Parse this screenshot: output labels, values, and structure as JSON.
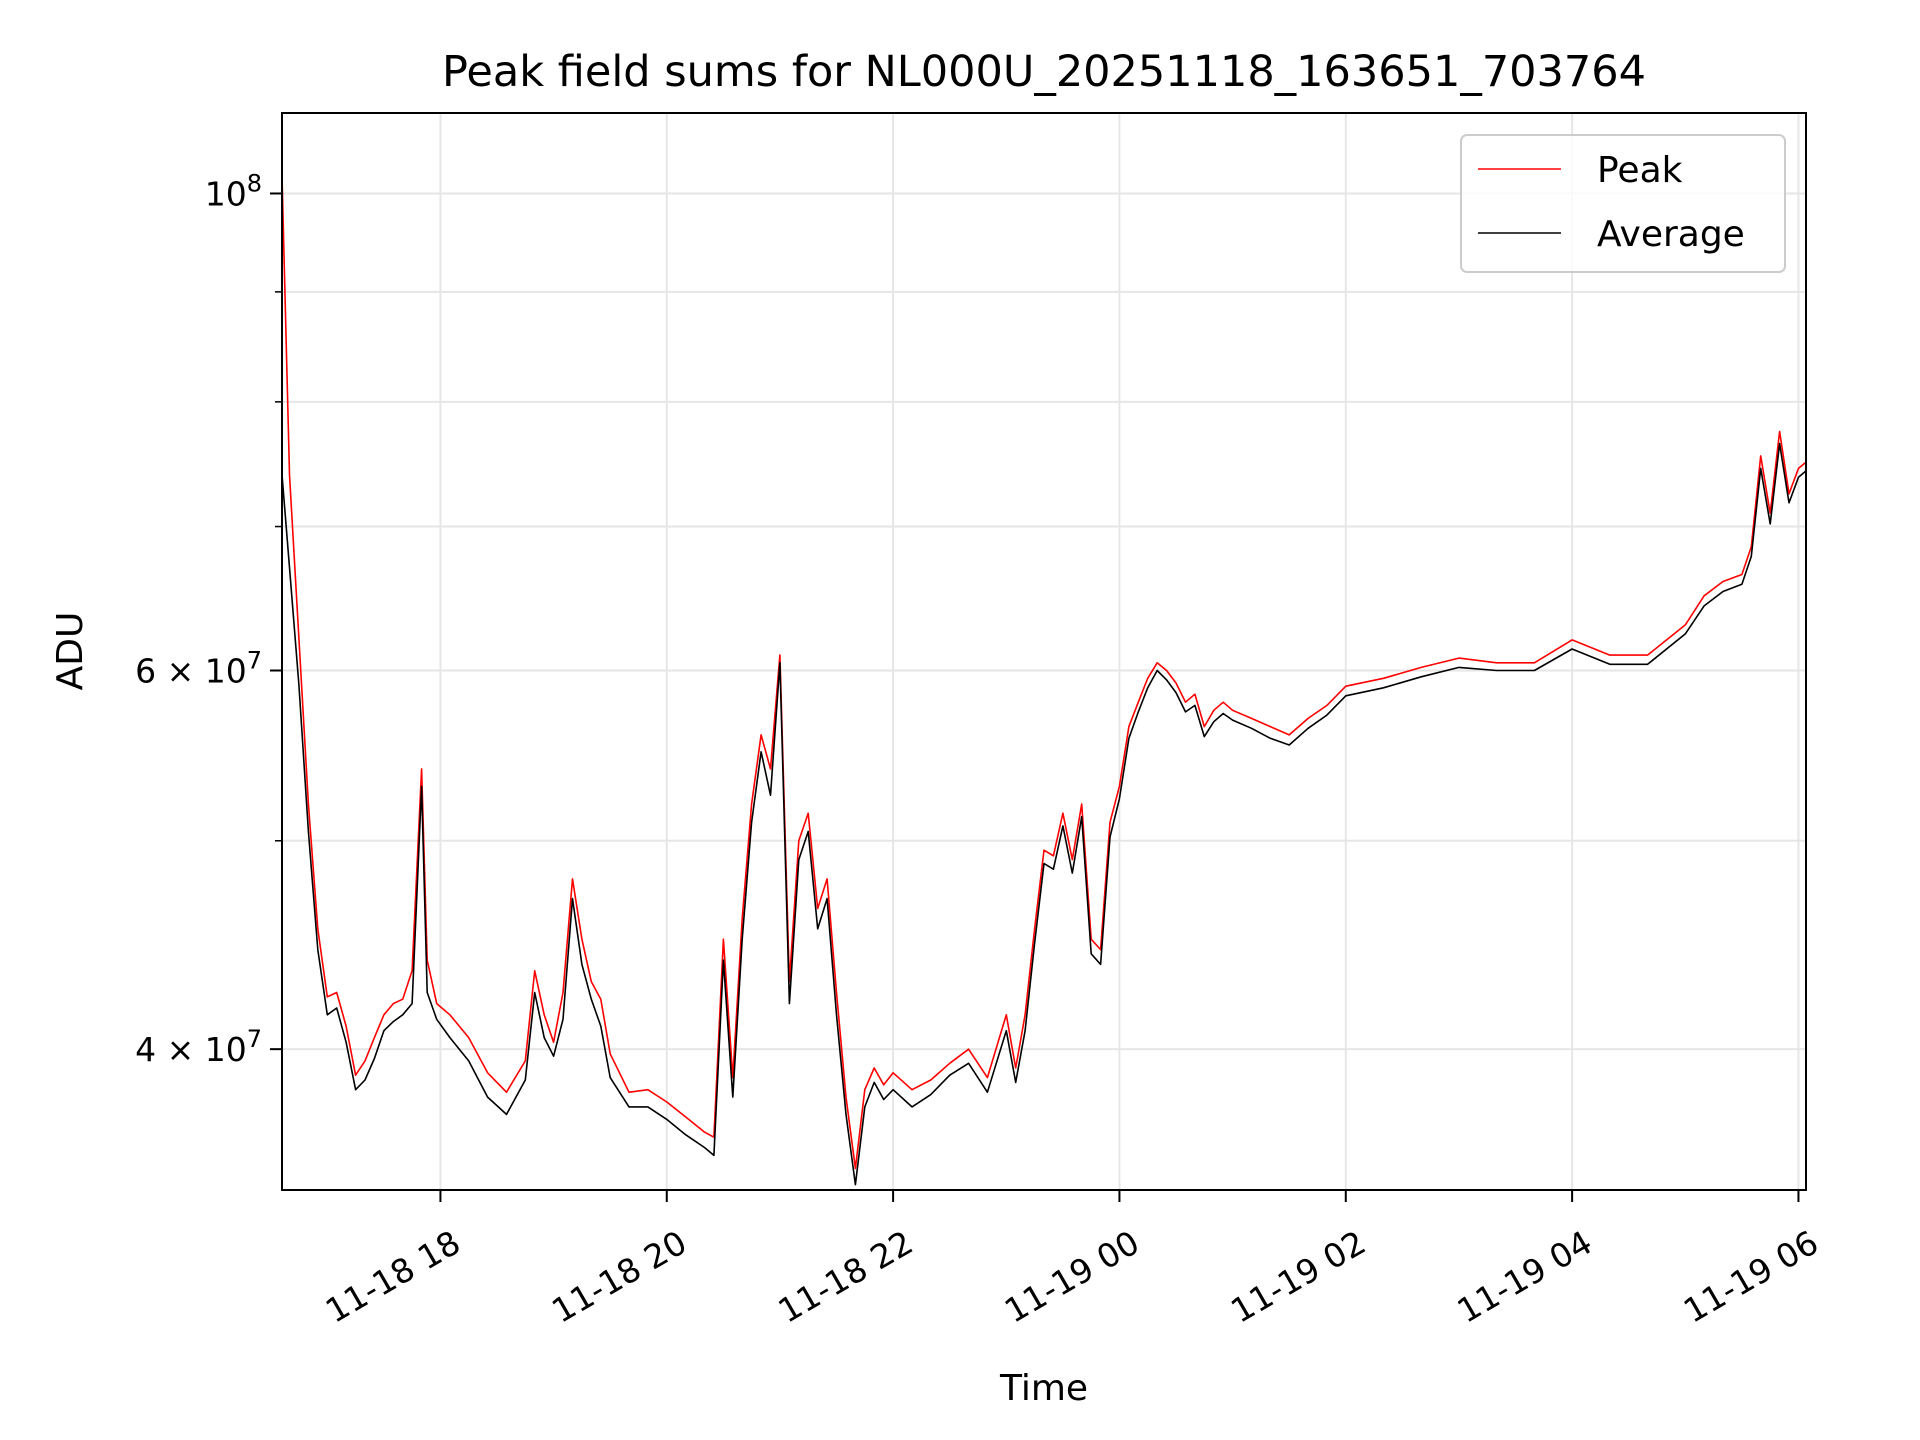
{
  "chart_data": {
    "type": "line",
    "title": "Peak field sums for NL000U_20251118_163651_703764",
    "xlabel": "Time",
    "ylabel": "ADU",
    "y_scale": "log",
    "ylim": [
      34400000,
      109000000
    ],
    "xlim": [
      "2025-11-18 16:36",
      "2025-11-19 06:04"
    ],
    "grid": true,
    "legend_position": "upper right",
    "x_ticks": [
      {
        "value": "2025-11-18 18:00",
        "label": "11-18 18"
      },
      {
        "value": "2025-11-18 20:00",
        "label": "11-18 20"
      },
      {
        "value": "2025-11-18 22:00",
        "label": "11-18 22"
      },
      {
        "value": "2025-11-19 00:00",
        "label": "11-19 00"
      },
      {
        "value": "2025-11-19 02:00",
        "label": "11-19 02"
      },
      {
        "value": "2025-11-19 04:00",
        "label": "11-19 04"
      },
      {
        "value": "2025-11-19 06:00",
        "label": "11-19 06"
      }
    ],
    "y_ticks_major": [
      {
        "value": 40000000,
        "mantissa": "4",
        "exponent": "7"
      },
      {
        "value": 60000000,
        "mantissa": "6",
        "exponent": "7"
      },
      {
        "value": 100000000,
        "mantissa": "",
        "exponent": "8"
      }
    ],
    "y_ticks_minor": [
      50000000,
      70000000,
      80000000,
      90000000
    ],
    "series": [
      {
        "name": "Peak",
        "color": "#ff0000",
        "x": [
          "2025-11-18 16:36",
          "2025-11-18 16:40",
          "2025-11-18 16:45",
          "2025-11-18 16:50",
          "2025-11-18 16:55",
          "2025-11-18 17:00",
          "2025-11-18 17:05",
          "2025-11-18 17:10",
          "2025-11-18 17:15",
          "2025-11-18 17:20",
          "2025-11-18 17:25",
          "2025-11-18 17:30",
          "2025-11-18 17:35",
          "2025-11-18 17:40",
          "2025-11-18 17:45",
          "2025-11-18 17:50",
          "2025-11-18 17:53",
          "2025-11-18 17:58",
          "2025-11-18 18:05",
          "2025-11-18 18:15",
          "2025-11-18 18:25",
          "2025-11-18 18:35",
          "2025-11-18 18:45",
          "2025-11-18 18:50",
          "2025-11-18 18:55",
          "2025-11-18 19:00",
          "2025-11-18 19:05",
          "2025-11-18 19:10",
          "2025-11-18 19:15",
          "2025-11-18 19:20",
          "2025-11-18 19:25",
          "2025-11-18 19:30",
          "2025-11-18 19:40",
          "2025-11-18 19:50",
          "2025-11-18 20:00",
          "2025-11-18 20:10",
          "2025-11-18 20:20",
          "2025-11-18 20:25",
          "2025-11-18 20:30",
          "2025-11-18 20:35",
          "2025-11-18 20:40",
          "2025-11-18 20:45",
          "2025-11-18 20:50",
          "2025-11-18 20:55",
          "2025-11-18 21:00",
          "2025-11-18 21:05",
          "2025-11-18 21:10",
          "2025-11-18 21:15",
          "2025-11-18 21:20",
          "2025-11-18 21:25",
          "2025-11-18 21:30",
          "2025-11-18 21:35",
          "2025-11-18 21:40",
          "2025-11-18 21:45",
          "2025-11-18 21:50",
          "2025-11-18 21:55",
          "2025-11-18 22:00",
          "2025-11-18 22:10",
          "2025-11-18 22:20",
          "2025-11-18 22:30",
          "2025-11-18 22:40",
          "2025-11-18 22:50",
          "2025-11-18 23:00",
          "2025-11-18 23:05",
          "2025-11-18 23:10",
          "2025-11-18 23:15",
          "2025-11-18 23:20",
          "2025-11-18 23:25",
          "2025-11-18 23:30",
          "2025-11-18 23:35",
          "2025-11-18 23:40",
          "2025-11-18 23:45",
          "2025-11-18 23:50",
          "2025-11-18 23:55",
          "2025-11-19 00:00",
          "2025-11-19 00:05",
          "2025-11-19 00:10",
          "2025-11-19 00:15",
          "2025-11-19 00:20",
          "2025-11-19 00:25",
          "2025-11-19 00:30",
          "2025-11-19 00:35",
          "2025-11-19 00:40",
          "2025-11-19 00:45",
          "2025-11-19 00:50",
          "2025-11-19 00:55",
          "2025-11-19 01:00",
          "2025-11-19 01:10",
          "2025-11-19 01:20",
          "2025-11-19 01:30",
          "2025-11-19 01:40",
          "2025-11-19 01:50",
          "2025-11-19 02:00",
          "2025-11-19 02:20",
          "2025-11-19 02:40",
          "2025-11-19 03:00",
          "2025-11-19 03:20",
          "2025-11-19 03:40",
          "2025-11-19 04:00",
          "2025-11-19 04:20",
          "2025-11-19 04:40",
          "2025-11-19 05:00",
          "2025-11-19 05:10",
          "2025-11-19 05:20",
          "2025-11-19 05:30",
          "2025-11-19 05:35",
          "2025-11-19 05:40",
          "2025-11-19 05:45",
          "2025-11-19 05:50",
          "2025-11-19 05:55",
          "2025-11-19 06:00",
          "2025-11-19 06:04"
        ],
        "values": [
          102000000,
          74000000,
          62000000,
          52000000,
          45500000,
          42300000,
          42500000,
          41000000,
          38900000,
          39500000,
          40500000,
          41500000,
          42000000,
          42200000,
          43500000,
          54000000,
          44000000,
          42000000,
          41500000,
          40500000,
          39000000,
          38200000,
          39500000,
          43500000,
          41500000,
          40300000,
          42500000,
          48000000,
          45000000,
          43000000,
          42200000,
          39800000,
          38200000,
          38300000,
          37800000,
          37200000,
          36600000,
          36400000,
          45000000,
          38800000,
          46000000,
          52000000,
          56000000,
          54000000,
          61000000,
          43000000,
          50000000,
          51500000,
          46500000,
          48000000,
          42500000,
          38000000,
          35200000,
          38300000,
          39200000,
          38500000,
          39000000,
          38300000,
          38700000,
          39400000,
          40000000,
          38800000,
          41500000,
          39200000,
          41500000,
          45500000,
          49500000,
          49200000,
          51500000,
          49000000,
          52000000,
          45000000,
          44500000,
          51000000,
          53000000,
          56500000,
          58000000,
          59500000,
          60500000,
          60000000,
          59200000,
          58000000,
          58500000,
          56500000,
          57500000,
          58000000,
          57500000,
          57000000,
          56500000,
          56000000,
          57000000,
          57800000,
          59000000,
          59500000,
          60200000,
          60800000,
          60500000,
          60500000,
          62000000,
          61000000,
          61000000,
          63000000,
          65000000,
          66000000,
          66500000,
          68500000,
          75500000,
          71000000,
          77500000,
          72500000,
          74500000,
          75000000
        ]
      },
      {
        "name": "Average",
        "color": "#000000",
        "x": [
          "2025-11-18 16:36",
          "2025-11-18 16:40",
          "2025-11-18 16:45",
          "2025-11-18 16:50",
          "2025-11-18 16:55",
          "2025-11-18 17:00",
          "2025-11-18 17:05",
          "2025-11-18 17:10",
          "2025-11-18 17:15",
          "2025-11-18 17:20",
          "2025-11-18 17:25",
          "2025-11-18 17:30",
          "2025-11-18 17:35",
          "2025-11-18 17:40",
          "2025-11-18 17:45",
          "2025-11-18 17:50",
          "2025-11-18 17:53",
          "2025-11-18 17:58",
          "2025-11-18 18:05",
          "2025-11-18 18:15",
          "2025-11-18 18:25",
          "2025-11-18 18:35",
          "2025-11-18 18:45",
          "2025-11-18 18:50",
          "2025-11-18 18:55",
          "2025-11-18 19:00",
          "2025-11-18 19:05",
          "2025-11-18 19:10",
          "2025-11-18 19:15",
          "2025-11-18 19:20",
          "2025-11-18 19:25",
          "2025-11-18 19:30",
          "2025-11-18 19:40",
          "2025-11-18 19:50",
          "2025-11-18 20:00",
          "2025-11-18 20:10",
          "2025-11-18 20:20",
          "2025-11-18 20:25",
          "2025-11-18 20:30",
          "2025-11-18 20:35",
          "2025-11-18 20:40",
          "2025-11-18 20:45",
          "2025-11-18 20:50",
          "2025-11-18 20:55",
          "2025-11-18 21:00",
          "2025-11-18 21:05",
          "2025-11-18 21:10",
          "2025-11-18 21:15",
          "2025-11-18 21:20",
          "2025-11-18 21:25",
          "2025-11-18 21:30",
          "2025-11-18 21:35",
          "2025-11-18 21:40",
          "2025-11-18 21:45",
          "2025-11-18 21:50",
          "2025-11-18 21:55",
          "2025-11-18 22:00",
          "2025-11-18 22:10",
          "2025-11-18 22:20",
          "2025-11-18 22:30",
          "2025-11-18 22:40",
          "2025-11-18 22:50",
          "2025-11-18 23:00",
          "2025-11-18 23:05",
          "2025-11-18 23:10",
          "2025-11-18 23:15",
          "2025-11-18 23:20",
          "2025-11-18 23:25",
          "2025-11-18 23:30",
          "2025-11-18 23:35",
          "2025-11-18 23:40",
          "2025-11-18 23:45",
          "2025-11-18 23:50",
          "2025-11-18 23:55",
          "2025-11-19 00:00",
          "2025-11-19 00:05",
          "2025-11-19 00:10",
          "2025-11-19 00:15",
          "2025-11-19 00:20",
          "2025-11-19 00:25",
          "2025-11-19 00:30",
          "2025-11-19 00:35",
          "2025-11-19 00:40",
          "2025-11-19 00:45",
          "2025-11-19 00:50",
          "2025-11-19 00:55",
          "2025-11-19 01:00",
          "2025-11-19 01:10",
          "2025-11-19 01:20",
          "2025-11-19 01:30",
          "2025-11-19 01:40",
          "2025-11-19 01:50",
          "2025-11-19 02:00",
          "2025-11-19 02:20",
          "2025-11-19 02:40",
          "2025-11-19 03:00",
          "2025-11-19 03:20",
          "2025-11-19 03:40",
          "2025-11-19 04:00",
          "2025-11-19 04:20",
          "2025-11-19 04:40",
          "2025-11-19 05:00",
          "2025-11-19 05:10",
          "2025-11-19 05:20",
          "2025-11-19 05:30",
          "2025-11-19 05:35",
          "2025-11-19 05:40",
          "2025-11-19 05:45",
          "2025-11-19 05:50",
          "2025-11-19 05:55",
          "2025-11-19 06:00",
          "2025-11-19 06:04"
        ],
        "values": [
          74000000,
          67000000,
          59000000,
          50500000,
          44500000,
          41500000,
          41800000,
          40300000,
          38300000,
          38700000,
          39600000,
          40800000,
          41200000,
          41500000,
          42000000,
          53000000,
          42500000,
          41300000,
          40500000,
          39500000,
          38000000,
          37300000,
          38700000,
          42500000,
          40500000,
          39700000,
          41300000,
          47000000,
          43800000,
          42200000,
          41000000,
          38800000,
          37600000,
          37600000,
          37100000,
          36500000,
          36000000,
          35700000,
          44000000,
          38000000,
          45000000,
          51000000,
          55000000,
          52500000,
          60500000,
          42000000,
          49000000,
          50500000,
          45500000,
          47000000,
          41500000,
          37300000,
          34600000,
          37600000,
          38600000,
          37900000,
          38300000,
          37600000,
          38100000,
          38900000,
          39400000,
          38200000,
          40800000,
          38600000,
          40800000,
          44800000,
          48800000,
          48500000,
          50800000,
          48300000,
          51300000,
          44300000,
          43800000,
          50200000,
          52300000,
          55800000,
          57400000,
          58900000,
          60000000,
          59400000,
          58600000,
          57400000,
          57800000,
          55900000,
          56800000,
          57300000,
          56900000,
          56400000,
          55800000,
          55400000,
          56400000,
          57200000,
          58400000,
          58900000,
          59600000,
          60200000,
          60000000,
          60000000,
          61400000,
          60400000,
          60400000,
          62400000,
          64300000,
          65300000,
          65800000,
          67800000,
          74500000,
          70200000,
          76500000,
          71800000,
          73800000,
          74300000
        ]
      }
    ]
  }
}
